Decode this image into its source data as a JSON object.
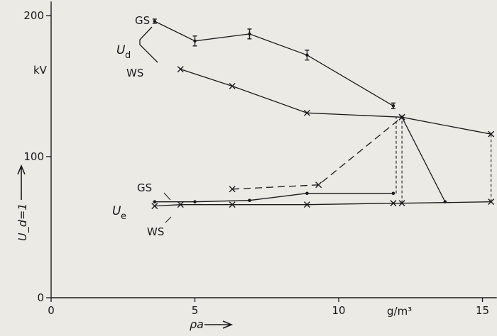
{
  "chart_data": {
    "type": "line",
    "xlabel": "ρa",
    "x_unit": "g/m³",
    "ylabel": "U_d=1",
    "y_unit": "kV",
    "xlim": [
      0,
      15.5
    ],
    "ylim": [
      0,
      210
    ],
    "x_ticks": [
      0,
      5,
      10,
      15
    ],
    "y_ticks": [
      0,
      100,
      200
    ],
    "grid": false,
    "group_labels": {
      "ud": "U",
      "ud_sub": "d",
      "ue": "U",
      "ue_sub": "e"
    },
    "series": [
      {
        "name": "GS",
        "group": "Ud",
        "marker": "errorbar",
        "style": "solid",
        "x": [
          3.6,
          5.0,
          6.9,
          8.9,
          11.9
        ],
        "y": [
          196,
          182,
          187,
          172,
          136
        ],
        "err": [
          1.5,
          3.5,
          3.5,
          3.5,
          2
        ]
      },
      {
        "name": "WS",
        "group": "Ud",
        "marker": "x",
        "style": "solid",
        "x": [
          4.5,
          6.3,
          8.9,
          12.2,
          15.3
        ],
        "y": [
          162,
          150,
          131,
          128,
          116
        ]
      },
      {
        "name": "GS",
        "group": "Ue",
        "marker": "dot",
        "style": "solid",
        "x": [
          3.6,
          5.0,
          6.9,
          8.9,
          11.9
        ],
        "y": [
          68,
          68,
          69,
          74,
          74
        ]
      },
      {
        "name": "WS",
        "group": "Ue",
        "marker": "x",
        "style": "solid",
        "x": [
          3.6,
          4.5,
          6.3,
          8.9,
          11.9,
          12.2,
          15.3
        ],
        "y": [
          65,
          66,
          66,
          66,
          67,
          67,
          68
        ]
      },
      {
        "name": "",
        "group": "",
        "marker": "dot",
        "style": "solid",
        "x": [
          12.2,
          13.7
        ],
        "y": [
          128,
          68
        ]
      },
      {
        "name": "",
        "group": "",
        "marker": "x",
        "style": "dashed",
        "x": [
          6.3,
          9.3,
          12.2
        ],
        "y": [
          77,
          80,
          128
        ]
      }
    ],
    "vertical_dashed": [
      {
        "x": 12.0,
        "from": 74,
        "to": 128
      },
      {
        "x": 12.2,
        "from": 67,
        "to": 128
      },
      {
        "x": 15.3,
        "from": 68,
        "to": 116
      }
    ]
  }
}
